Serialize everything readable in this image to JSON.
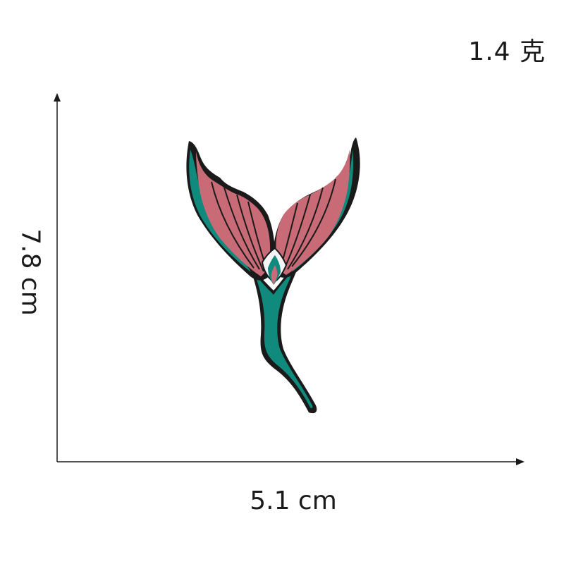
{
  "weight": "1.4 克",
  "dimensions": {
    "width": "5.1 cm",
    "height": "7.8 cm"
  },
  "image": {
    "subject": "mermaid-tail-embroidered-patch",
    "colors": {
      "fin": "#c96b76",
      "fin_dark": "#a9505d",
      "body": "#0f8a7d",
      "outline": "#1a1a1a",
      "highlight": "#f4f4f4"
    }
  }
}
